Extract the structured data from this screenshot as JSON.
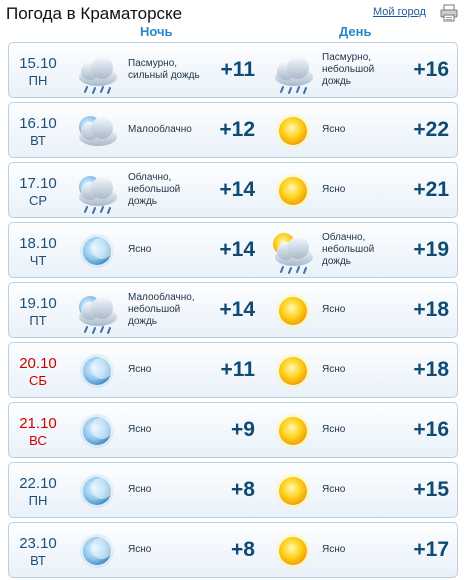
{
  "header": {
    "title": "Погода в Краматорске",
    "my_city_link": "Мой город",
    "print_icon": "printer-icon",
    "night_label": "Ночь",
    "day_label": "День"
  },
  "colors": {
    "accent": "#2a88c6",
    "temperature": "#0e4a73",
    "weekend": "#cc0000",
    "row_border": "#b9cfe2"
  },
  "forecast": [
    {
      "date": "15.10",
      "dow": "ПН",
      "weekend": false,
      "night": {
        "icon": "rain-cloud-icon",
        "desc": "Пасмурно, сильный дождь",
        "temp": "+11"
      },
      "day": {
        "icon": "rain-cloud-icon",
        "desc": "Пасмурно, небольшой дождь",
        "temp": "+16"
      }
    },
    {
      "date": "16.10",
      "dow": "ВТ",
      "weekend": false,
      "night": {
        "icon": "moon-cloud-icon",
        "desc": "Малооблачно",
        "temp": "+12"
      },
      "day": {
        "icon": "sun-icon",
        "desc": "Ясно",
        "temp": "+22"
      }
    },
    {
      "date": "17.10",
      "dow": "СР",
      "weekend": false,
      "night": {
        "icon": "moon-rain-cloud-icon",
        "desc": "Облачно, небольшой дождь",
        "temp": "+14"
      },
      "day": {
        "icon": "sun-icon",
        "desc": "Ясно",
        "temp": "+21"
      }
    },
    {
      "date": "18.10",
      "dow": "ЧТ",
      "weekend": false,
      "night": {
        "icon": "moon-icon",
        "desc": "Ясно",
        "temp": "+14"
      },
      "day": {
        "icon": "sun-rain-cloud-icon",
        "desc": "Облачно, небольшой дождь",
        "temp": "+19"
      }
    },
    {
      "date": "19.10",
      "dow": "ПТ",
      "weekend": false,
      "night": {
        "icon": "moon-rain-cloud-icon",
        "desc": "Малооблачно, небольшой дождь",
        "temp": "+14"
      },
      "day": {
        "icon": "sun-icon",
        "desc": "Ясно",
        "temp": "+18"
      }
    },
    {
      "date": "20.10",
      "dow": "СБ",
      "weekend": true,
      "night": {
        "icon": "moon-icon",
        "desc": "Ясно",
        "temp": "+11"
      },
      "day": {
        "icon": "sun-icon",
        "desc": "Ясно",
        "temp": "+18"
      }
    },
    {
      "date": "21.10",
      "dow": "ВС",
      "weekend": true,
      "night": {
        "icon": "moon-icon",
        "desc": "Ясно",
        "temp": "+9"
      },
      "day": {
        "icon": "sun-icon",
        "desc": "Ясно",
        "temp": "+16"
      }
    },
    {
      "date": "22.10",
      "dow": "ПН",
      "weekend": false,
      "night": {
        "icon": "moon-icon",
        "desc": "Ясно",
        "temp": "+8"
      },
      "day": {
        "icon": "sun-icon",
        "desc": "Ясно",
        "temp": "+15"
      }
    },
    {
      "date": "23.10",
      "dow": "ВТ",
      "weekend": false,
      "night": {
        "icon": "moon-icon",
        "desc": "Ясно",
        "temp": "+8"
      },
      "day": {
        "icon": "sun-icon",
        "desc": "Ясно",
        "temp": "+17"
      }
    }
  ]
}
